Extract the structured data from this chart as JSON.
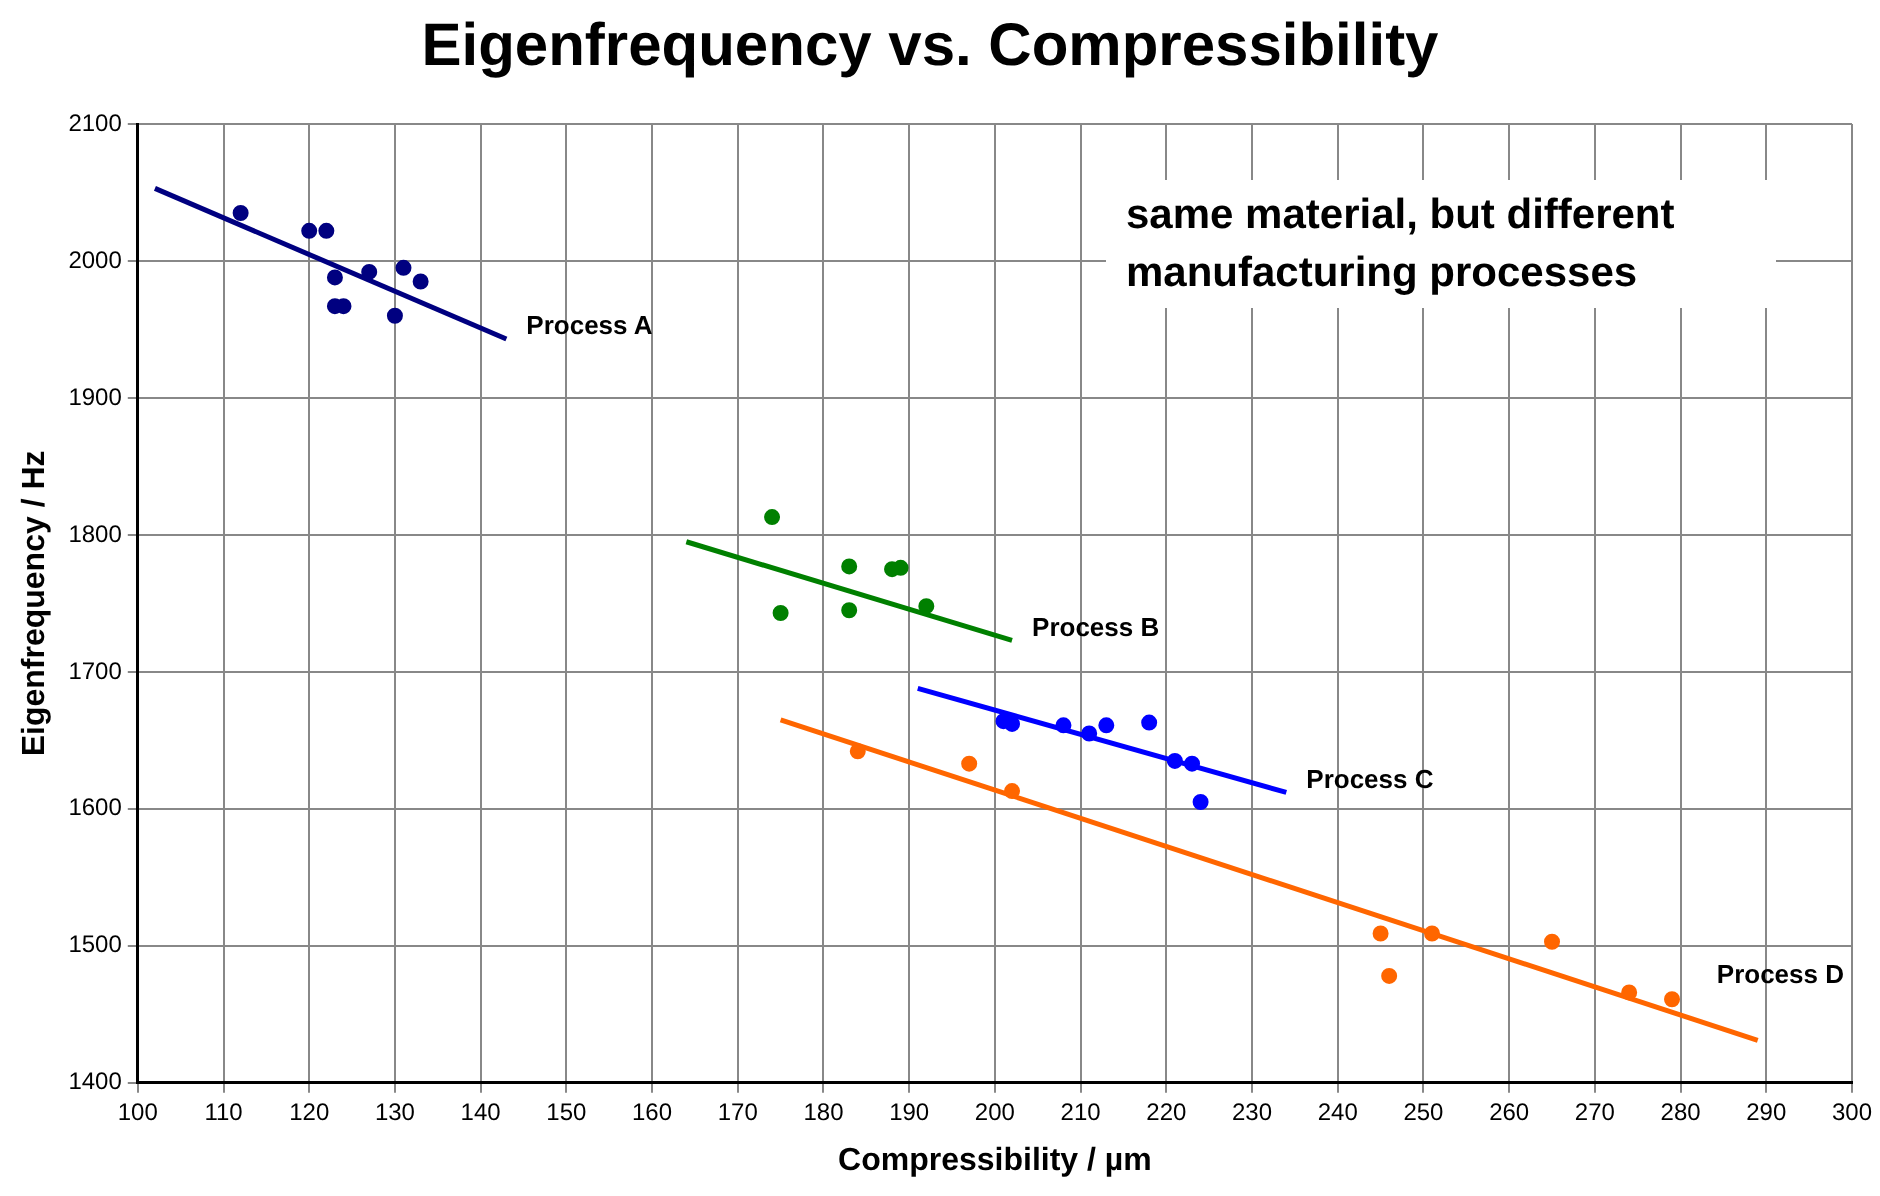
{
  "chart_data": {
    "type": "scatter",
    "title": "Eigenfrequency vs. Compressibility",
    "xlabel": "Compressibility / µm",
    "ylabel": "Eigenfrequency / Hz",
    "xlim": [
      100,
      300
    ],
    "xticks": [
      100,
      110,
      120,
      130,
      140,
      150,
      160,
      170,
      180,
      190,
      200,
      210,
      220,
      230,
      240,
      250,
      260,
      270,
      280,
      290,
      300
    ],
    "ylim": [
      1400,
      2100
    ],
    "yticks": [
      1400,
      1500,
      1600,
      1700,
      1800,
      1900,
      2000,
      2100
    ],
    "grid": true,
    "legend": false,
    "marker": "circle",
    "series": [
      {
        "color": "#000080",
        "x": [
          112,
          120,
          122,
          123,
          123,
          124,
          127,
          130,
          131,
          133
        ],
        "values": [
          2035,
          2022,
          2022,
          1988,
          1967,
          1967,
          1992,
          1960,
          1995,
          1985
        ]
      },
      {
        "color": "#008000",
        "x": [
          174,
          175,
          183,
          183,
          188,
          189,
          192
        ],
        "values": [
          1813,
          1743,
          1777,
          1745,
          1775,
          1776,
          1748
        ]
      },
      {
        "color": "#0000ff",
        "x": [
          201,
          202,
          208,
          211,
          213,
          218,
          221,
          223,
          224
        ],
        "values": [
          1664,
          1662,
          1661,
          1655,
          1661,
          1663,
          1635,
          1633,
          1605
        ]
      },
      {
        "color": "#ff6600",
        "x": [
          184,
          197,
          202,
          245,
          246,
          251,
          265,
          274,
          279
        ],
        "values": [
          1642,
          1633,
          1613,
          1509,
          1478,
          1509,
          1503,
          1466,
          1461
        ]
      },
      {
        "type": "line",
        "name": "Process A",
        "marker": "none",
        "color": "#000080",
        "x": [
          102,
          143
        ],
        "values": [
          2053,
          1943
        ]
      },
      {
        "type": "line",
        "name": "Process B",
        "marker": "none",
        "color": "#008000",
        "x": [
          164,
          202
        ],
        "values": [
          1795,
          1723
        ]
      },
      {
        "type": "line",
        "name": "Process C",
        "marker": "none",
        "color": "#0000ff",
        "x": [
          191,
          234
        ],
        "values": [
          1688,
          1612
        ]
      },
      {
        "type": "line",
        "name": "Process D",
        "marker": "none",
        "color": "#ff6600",
        "x": [
          175,
          289
        ],
        "values": [
          1665,
          1431
        ]
      }
    ],
    "annotations": [
      "same material, but different manufacturing processes"
    ]
  }
}
